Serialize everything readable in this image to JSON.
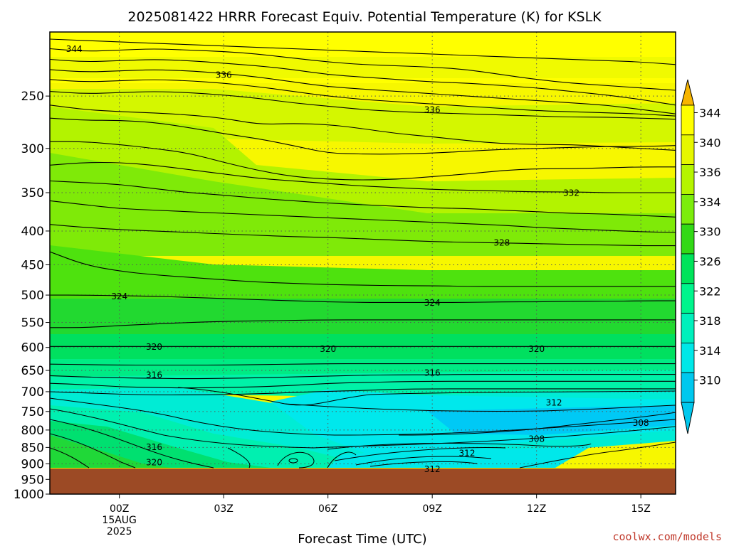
{
  "title": "2025081422 HRRR Forecast Equiv. Potential Temperature (K) for KSLK",
  "credit": "coolwx.com/models",
  "colors": {
    "credit": "#c0392b",
    "ground": "#9c4a25",
    "contour": "#000000"
  },
  "chart_data": {
    "type": "heatmap",
    "title": "2025081422 HRRR Forecast Equiv. Potential Temperature (K) for KSLK",
    "xlabel": "Forecast Time (UTC)",
    "ylabel": "",
    "x_ticks": [
      {
        "hour": 0,
        "label": "00Z",
        "sub1": "15AUG",
        "sub2": "2025"
      },
      {
        "hour": 3,
        "label": "03Z"
      },
      {
        "hour": 6,
        "label": "06Z"
      },
      {
        "hour": 9,
        "label": "09Z"
      },
      {
        "hour": 12,
        "label": "12Z"
      },
      {
        "hour": 15,
        "label": "15Z"
      }
    ],
    "x_range_hours": [
      -2,
      16
    ],
    "y_axis": "pressure (hPa), log scale, decreasing upward",
    "y_range": [
      1000,
      200
    ],
    "y_ticks": [
      "250",
      "300",
      "350",
      "400",
      "450",
      "500",
      "550",
      "600",
      "650",
      "700",
      "750",
      "800",
      "850",
      "900",
      "950",
      "1000"
    ],
    "grid": "dotted",
    "surface_pressure": 958,
    "colorbar": {
      "position": "right",
      "levels": [
        "344",
        "340",
        "336",
        "334",
        "330",
        "326",
        "322",
        "318",
        "314",
        "310"
      ],
      "colors": [
        "#f7b500",
        "#ffff00",
        "#e6f700",
        "#b5f500",
        "#7ced0c",
        "#32d916",
        "#00e45a",
        "#00f58c",
        "#00f0bc",
        "#00e8e8",
        "#00c8ee"
      ]
    },
    "contour_lines": [
      {
        "p": [
          205,
          206,
          207,
          208,
          209,
          210,
          211,
          212,
          213,
          214,
          215,
          216,
          217,
          218,
          219,
          220,
          221,
          222,
          224
        ]
      },
      {
        "p": [
          212,
          214,
          213,
          212,
          213,
          214,
          216,
          219,
          222,
          224,
          225,
          226,
          228,
          232,
          236,
          239,
          241,
          243,
          245
        ]
      },
      {
        "p": [
          220,
          222,
          221,
          220,
          221,
          223,
          225,
          228,
          232,
          234,
          236,
          238,
          239,
          241,
          243,
          246,
          249,
          253,
          258
        ]
      },
      {
        "p": [
          228,
          230,
          229,
          228,
          229,
          231,
          234,
          238,
          242,
          244,
          246,
          248,
          250,
          252,
          254,
          256,
          258,
          262,
          266
        ]
      },
      {
        "p": [
          236,
          238,
          237,
          236,
          237,
          239,
          242,
          246,
          250,
          253,
          255,
          257,
          259,
          261,
          263,
          264,
          265,
          266,
          268
        ]
      },
      {
        "p": [
          246,
          248,
          247,
          246,
          247,
          249,
          252,
          256,
          259,
          262,
          264,
          265,
          266,
          267,
          268,
          269,
          269,
          270,
          271
        ]
      },
      {
        "p": [
          258,
          262,
          264,
          265,
          267,
          270,
          276,
          275,
          276,
          280,
          285,
          288,
          292,
          295,
          296,
          296,
          298,
          300,
          302
        ]
      },
      {
        "p": [
          270,
          272,
          272,
          274,
          279,
          285,
          290,
          297,
          305,
          306,
          306,
          305,
          303,
          301,
          300,
          299,
          298,
          298,
          297
        ]
      },
      {
        "p": [
          293,
          293,
          296,
          300,
          305,
          315,
          324,
          331,
          334,
          335,
          334,
          331,
          328,
          324,
          322,
          322,
          321,
          320,
          320
        ]
      },
      {
        "p": [
          318,
          315,
          315,
          318,
          323,
          328,
          333,
          336,
          339,
          342,
          344,
          346,
          347,
          348,
          349,
          349,
          350,
          350,
          350
        ]
      },
      {
        "p": [
          336,
          338,
          340,
          345,
          350,
          353,
          357,
          360,
          363,
          365,
          367,
          369,
          370,
          372,
          374,
          376,
          377,
          379,
          381
        ]
      },
      {
        "p": [
          360,
          365,
          370,
          372,
          374,
          376,
          378,
          380,
          382,
          384,
          386,
          388,
          390,
          392,
          395,
          397,
          399,
          401,
          402
        ]
      },
      {
        "p": [
          391,
          395,
          398,
          400,
          402,
          404,
          406,
          408,
          409,
          411,
          413,
          415,
          416,
          417,
          418,
          419,
          420,
          421,
          421
        ]
      },
      {
        "p": [
          430,
          450,
          460,
          466,
          470,
          474,
          478,
          480,
          482,
          483,
          484,
          484,
          485,
          485,
          485,
          485,
          485,
          485,
          485
        ]
      },
      {
        "p": [
          500,
          500,
          501,
          502,
          504,
          506,
          508,
          510,
          512,
          513,
          513,
          513,
          513,
          512,
          512,
          511,
          511,
          510,
          510
        ]
      },
      {
        "p": [
          560,
          560,
          556,
          553,
          550,
          548,
          547,
          546,
          545,
          545,
          545,
          545,
          545,
          545,
          545,
          545,
          545,
          545,
          545
        ]
      },
      {
        "p": [
          598,
          598,
          598,
          598,
          598,
          598,
          598,
          598,
          598,
          598,
          598,
          598,
          598,
          598,
          598,
          598,
          598,
          598,
          598
        ]
      },
      {
        "p": [
          636,
          637,
          638,
          638,
          638,
          638,
          637,
          636,
          635,
          635,
          635,
          635,
          635,
          635,
          635,
          635,
          635,
          635,
          635
        ]
      },
      {
        "p": [
          662,
          665,
          667,
          668,
          669,
          668,
          667,
          665,
          663,
          661,
          660,
          660,
          659,
          659,
          659,
          659,
          659,
          659,
          659
        ]
      },
      {
        "p": [
          680,
          683,
          688,
          690,
          691,
          690,
          688,
          685,
          680,
          678,
          676,
          675,
          675,
          675,
          675,
          675,
          675,
          675,
          675
        ]
      },
      {
        "p": [
          700,
          703,
          706,
          708,
          708,
          707,
          705,
          702,
          699,
          697,
          694,
          693,
          693,
          693,
          693,
          693,
          693,
          693,
          693
        ]
      }
    ],
    "contour_labels": [
      {
        "hour": -1.3,
        "p": 212,
        "text": "344"
      },
      {
        "hour": 3.0,
        "p": 232,
        "text": "336"
      },
      {
        "hour": 9.0,
        "p": 262,
        "text": "336"
      },
      {
        "hour": 13.0,
        "p": 350,
        "text": "332"
      },
      {
        "hour": 11.0,
        "p": 416,
        "text": "328"
      },
      {
        "hour": 0.0,
        "p": 502,
        "text": "324"
      },
      {
        "hour": 9.0,
        "p": 513,
        "text": "324"
      },
      {
        "hour": 1.0,
        "p": 598,
        "text": "320"
      },
      {
        "hour": 6.0,
        "p": 603,
        "text": "320"
      },
      {
        "hour": 12.0,
        "p": 603,
        "text": "320"
      },
      {
        "hour": 1.0,
        "p": 660,
        "text": "316"
      },
      {
        "hour": 9.0,
        "p": 655,
        "text": "316"
      },
      {
        "hour": 12.5,
        "p": 727,
        "text": "312"
      },
      {
        "hour": 15.0,
        "p": 780,
        "text": "308"
      },
      {
        "hour": 12.0,
        "p": 824,
        "text": "308"
      },
      {
        "hour": 10.0,
        "p": 866,
        "text": "312"
      },
      {
        "hour": 9.0,
        "p": 916,
        "text": "312"
      },
      {
        "hour": 1.0,
        "p": 848,
        "text": "316"
      },
      {
        "hour": 1.0,
        "p": 895,
        "text": "320"
      }
    ]
  }
}
